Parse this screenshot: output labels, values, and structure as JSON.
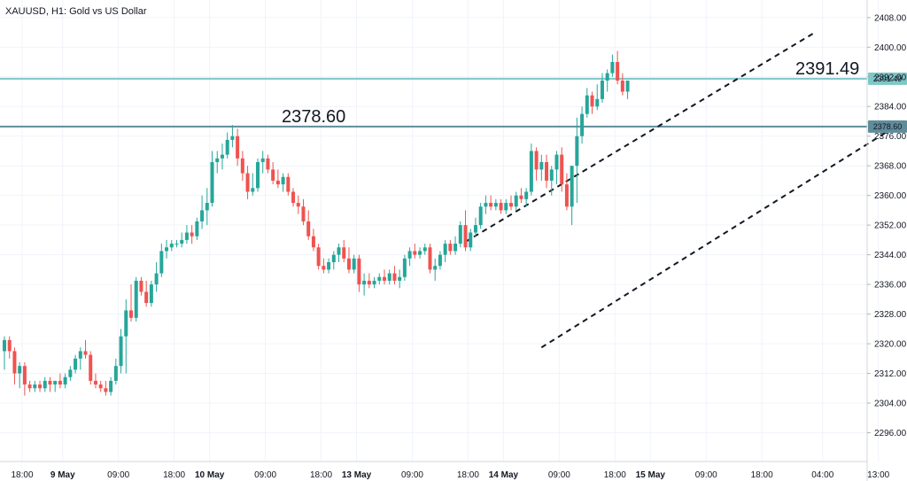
{
  "chart_data": {
    "type": "candlestick",
    "title": "XAUUSD, H1: Gold vs US Dollar",
    "y_axis": {
      "position": "right",
      "range": [
        2292,
        2412
      ],
      "ticks": [
        2408,
        2400,
        2392,
        2384,
        2376,
        2368,
        2360,
        2352,
        2344,
        2336,
        2328,
        2320,
        2312,
        2304,
        2296
      ]
    },
    "x_axis": {
      "labels": [
        {
          "text": "18:00",
          "bold": false,
          "index": 3.5
        },
        {
          "text": "9 May",
          "bold": true,
          "index": 11.5
        },
        {
          "text": "09:00",
          "bold": false,
          "index": 22.5
        },
        {
          "text": "18:00",
          "bold": false,
          "index": 33.5
        },
        {
          "text": "10 May",
          "bold": true,
          "index": 40.5
        },
        {
          "text": "09:00",
          "bold": false,
          "index": 51.5
        },
        {
          "text": "18:00",
          "bold": false,
          "index": 62.5
        },
        {
          "text": "13 May",
          "bold": true,
          "index": 69.5
        },
        {
          "text": "09:00",
          "bold": false,
          "index": 80.5
        },
        {
          "text": "18:00",
          "bold": false,
          "index": 91.5
        },
        {
          "text": "14 May",
          "bold": true,
          "index": 98.5
        },
        {
          "text": "09:00",
          "bold": false,
          "index": 109.5
        },
        {
          "text": "18:00",
          "bold": false,
          "index": 120.5
        },
        {
          "text": "15 May",
          "bold": true,
          "index": 127.5
        },
        {
          "text": "09:00",
          "bold": false,
          "index": 138.5
        },
        {
          "text": "18:00",
          "bold": false,
          "index": 149.5
        },
        {
          "text": "04:00",
          "bold": false,
          "index": 161.5
        },
        {
          "text": "13:00",
          "bold": false,
          "index": 172.5
        }
      ]
    },
    "horizontal_levels": [
      {
        "value": 2391.49,
        "label": "2391.49",
        "badge": "2391.49",
        "color": "#7fc7c7"
      },
      {
        "value": 2378.6,
        "label": "2378.60",
        "badge": "2378.60",
        "color": "#5f8c9a"
      }
    ],
    "trend_lines": [
      {
        "from": {
          "i": 91,
          "v": 2347.5
        },
        "to": {
          "i": 160,
          "v": 2404.0
        }
      },
      {
        "from": {
          "i": 106,
          "v": 2319.0
        },
        "to": {
          "i": 174,
          "v": 2377.0
        }
      }
    ],
    "candles": [
      [
        2318,
        2322,
        2313,
        2321
      ],
      [
        2321,
        2322,
        2316,
        2318
      ],
      [
        2318,
        2319,
        2309,
        2312
      ],
      [
        2312,
        2315,
        2308,
        2314
      ],
      [
        2314,
        2315,
        2306,
        2309
      ],
      [
        2309,
        2310,
        2307,
        2308
      ],
      [
        2308,
        2310,
        2307,
        2309
      ],
      [
        2309,
        2310,
        2307,
        2308
      ],
      [
        2308,
        2311,
        2307,
        2310
      ],
      [
        2310,
        2311,
        2307,
        2309
      ],
      [
        2309,
        2310,
        2307,
        2310
      ],
      [
        2310,
        2312,
        2308,
        2309
      ],
      [
        2309,
        2312,
        2308,
        2311
      ],
      [
        2311,
        2314,
        2310,
        2313
      ],
      [
        2313,
        2317,
        2312,
        2316
      ],
      [
        2316,
        2319,
        2313,
        2318
      ],
      [
        2318,
        2321,
        2316,
        2317
      ],
      [
        2317,
        2318,
        2309,
        2310
      ],
      [
        2310,
        2312,
        2308,
        2309
      ],
      [
        2309,
        2310,
        2307,
        2308
      ],
      [
        2308,
        2310,
        2306,
        2307
      ],
      [
        2307,
        2311,
        2306,
        2310
      ],
      [
        2310,
        2316,
        2309,
        2314
      ],
      [
        2314,
        2324,
        2312,
        2322
      ],
      [
        2322,
        2332,
        2312,
        2329
      ],
      [
        2329,
        2336,
        2326,
        2327
      ],
      [
        2327,
        2338,
        2326,
        2337
      ],
      [
        2337,
        2338,
        2333,
        2334
      ],
      [
        2334,
        2337,
        2330,
        2331
      ],
      [
        2331,
        2337,
        2330,
        2336
      ],
      [
        2336,
        2342,
        2334,
        2339
      ],
      [
        2339,
        2347,
        2338,
        2345
      ],
      [
        2345,
        2348,
        2343,
        2346
      ],
      [
        2346,
        2348,
        2345,
        2347
      ],
      [
        2347,
        2348,
        2346,
        2347
      ],
      [
        2347,
        2350,
        2346,
        2348
      ],
      [
        2348,
        2352,
        2347,
        2350
      ],
      [
        2350,
        2352,
        2347,
        2349
      ],
      [
        2349,
        2354,
        2348,
        2353
      ],
      [
        2353,
        2360,
        2351,
        2356
      ],
      [
        2356,
        2362,
        2352,
        2358
      ],
      [
        2358,
        2372,
        2357,
        2369
      ],
      [
        2369,
        2372,
        2366,
        2370
      ],
      [
        2370,
        2374,
        2367,
        2371
      ],
      [
        2371,
        2377,
        2370,
        2375
      ],
      [
        2375,
        2379,
        2373,
        2376
      ],
      [
        2376,
        2378,
        2368,
        2370
      ],
      [
        2370,
        2372,
        2364,
        2366
      ],
      [
        2366,
        2368,
        2359,
        2361
      ],
      [
        2361,
        2366,
        2360,
        2362
      ],
      [
        2362,
        2370,
        2361,
        2369
      ],
      [
        2369,
        2372,
        2366,
        2370
      ],
      [
        2370,
        2371,
        2366,
        2367
      ],
      [
        2367,
        2369,
        2363,
        2364
      ],
      [
        2364,
        2367,
        2362,
        2363
      ],
      [
        2363,
        2366,
        2361,
        2365
      ],
      [
        2365,
        2366,
        2360,
        2361
      ],
      [
        2361,
        2362,
        2357,
        2358
      ],
      [
        2358,
        2360,
        2355,
        2357
      ],
      [
        2357,
        2359,
        2352,
        2353
      ],
      [
        2353,
        2356,
        2348,
        2349
      ],
      [
        2349,
        2351,
        2345,
        2346
      ],
      [
        2346,
        2347,
        2340,
        2341
      ],
      [
        2341,
        2343,
        2339,
        2340
      ],
      [
        2340,
        2343,
        2339,
        2342
      ],
      [
        2342,
        2345,
        2340,
        2344
      ],
      [
        2344,
        2347,
        2342,
        2346
      ],
      [
        2346,
        2348,
        2342,
        2343
      ],
      [
        2343,
        2346,
        2339,
        2340
      ],
      [
        2340,
        2344,
        2339,
        2343
      ],
      [
        2343,
        2344,
        2334,
        2336
      ],
      [
        2336,
        2339,
        2333,
        2337
      ],
      [
        2337,
        2339,
        2335,
        2336
      ],
      [
        2336,
        2338,
        2335,
        2337
      ],
      [
        2337,
        2339,
        2336,
        2338
      ],
      [
        2338,
        2340,
        2336,
        2337
      ],
      [
        2337,
        2340,
        2336,
        2339
      ],
      [
        2339,
        2341,
        2336,
        2337
      ],
      [
        2337,
        2340,
        2335,
        2338
      ],
      [
        2338,
        2344,
        2337,
        2343
      ],
      [
        2343,
        2346,
        2341,
        2345
      ],
      [
        2345,
        2347,
        2343,
        2344
      ],
      [
        2344,
        2346,
        2343,
        2345
      ],
      [
        2345,
        2347,
        2344,
        2346
      ],
      [
        2346,
        2347,
        2339,
        2340
      ],
      [
        2340,
        2343,
        2337,
        2341
      ],
      [
        2341,
        2345,
        2340,
        2344
      ],
      [
        2344,
        2348,
        2342,
        2347
      ],
      [
        2347,
        2348,
        2344,
        2345
      ],
      [
        2345,
        2349,
        2344,
        2347
      ],
      [
        2347,
        2353,
        2346,
        2352
      ],
      [
        2352,
        2356,
        2345,
        2346
      ],
      [
        2346,
        2351,
        2345,
        2350
      ],
      [
        2350,
        2354,
        2349,
        2352
      ],
      [
        2352,
        2358,
        2351,
        2357
      ],
      [
        2357,
        2360,
        2355,
        2358
      ],
      [
        2358,
        2360,
        2356,
        2357
      ],
      [
        2357,
        2359,
        2356,
        2358
      ],
      [
        2358,
        2359,
        2355,
        2356
      ],
      [
        2356,
        2359,
        2355,
        2358
      ],
      [
        2358,
        2360,
        2356,
        2357
      ],
      [
        2357,
        2361,
        2356,
        2360
      ],
      [
        2360,
        2362,
        2358,
        2359
      ],
      [
        2359,
        2362,
        2357,
        2361
      ],
      [
        2361,
        2374,
        2360,
        2372
      ],
      [
        2372,
        2373,
        2364,
        2367
      ],
      [
        2367,
        2371,
        2364,
        2369
      ],
      [
        2369,
        2371,
        2362,
        2364
      ],
      [
        2364,
        2368,
        2360,
        2367
      ],
      [
        2367,
        2372,
        2363,
        2371
      ],
      [
        2371,
        2373,
        2361,
        2363
      ],
      [
        2363,
        2366,
        2356,
        2357
      ],
      [
        2357,
        2368,
        2352,
        2368
      ],
      [
        2368,
        2381,
        2358,
        2376
      ],
      [
        2376,
        2384,
        2374,
        2382
      ],
      [
        2382,
        2389,
        2381,
        2387
      ],
      [
        2387,
        2388,
        2382,
        2384
      ],
      [
        2384,
        2390,
        2383,
        2386
      ],
      [
        2386,
        2393,
        2385,
        2391
      ],
      [
        2391,
        2394,
        2388,
        2393
      ],
      [
        2393,
        2398,
        2392,
        2396
      ],
      [
        2396,
        2399,
        2390,
        2391
      ],
      [
        2391,
        2393,
        2387,
        2388
      ],
      [
        2388,
        2391,
        2386,
        2391
      ]
    ]
  }
}
